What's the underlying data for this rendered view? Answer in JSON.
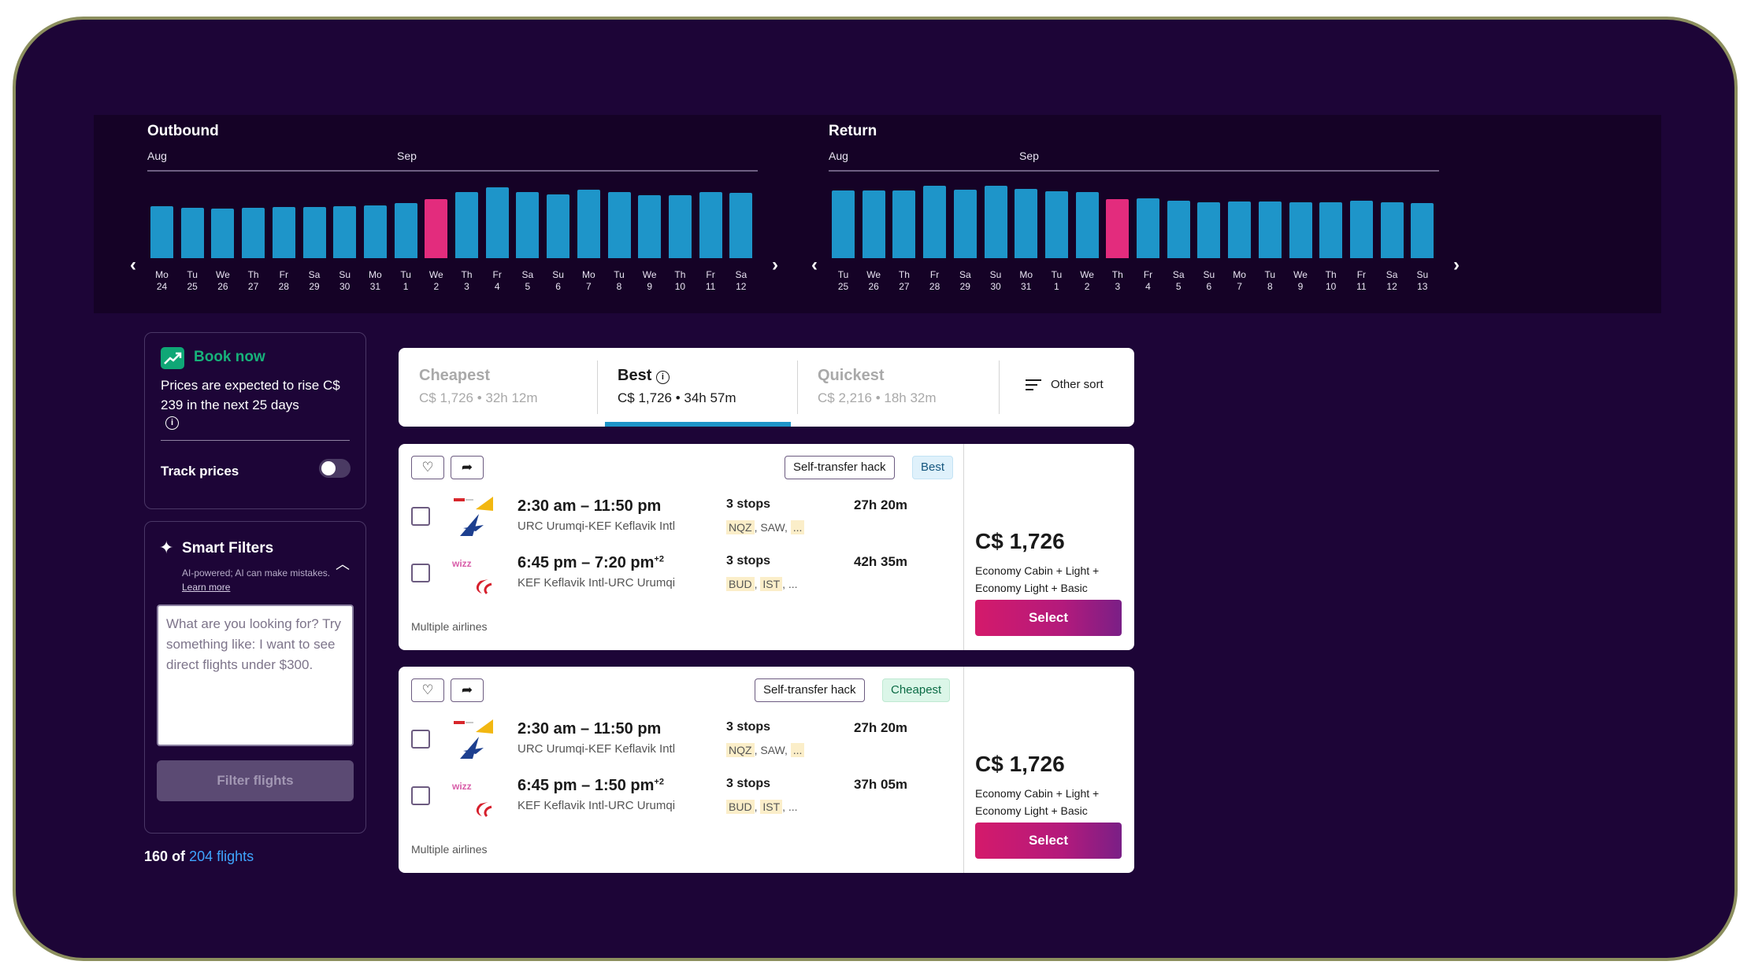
{
  "outbound": {
    "title": "Outbound",
    "months": [
      "Aug",
      "Sep"
    ],
    "selected_index": 9,
    "days": [
      {
        "dow": "Mo",
        "d": "24",
        "level": 0.72
      },
      {
        "dow": "Tu",
        "d": "25",
        "level": 0.7
      },
      {
        "dow": "We",
        "d": "26",
        "level": 0.69
      },
      {
        "dow": "Th",
        "d": "27",
        "level": 0.7
      },
      {
        "dow": "Fr",
        "d": "28",
        "level": 0.71
      },
      {
        "dow": "Sa",
        "d": "29",
        "level": 0.71
      },
      {
        "dow": "Su",
        "d": "30",
        "level": 0.72
      },
      {
        "dow": "Mo",
        "d": "31",
        "level": 0.73
      },
      {
        "dow": "Tu",
        "d": "1",
        "level": 0.76
      },
      {
        "dow": "We",
        "d": "2",
        "level": 0.81
      },
      {
        "dow": "Th",
        "d": "3",
        "level": 0.91
      },
      {
        "dow": "Fr",
        "d": "4",
        "level": 0.98
      },
      {
        "dow": "Sa",
        "d": "5",
        "level": 0.91
      },
      {
        "dow": "Su",
        "d": "6",
        "level": 0.88
      },
      {
        "dow": "Mo",
        "d": "7",
        "level": 0.95
      },
      {
        "dow": "Tu",
        "d": "8",
        "level": 0.91
      },
      {
        "dow": "We",
        "d": "9",
        "level": 0.87
      },
      {
        "dow": "Th",
        "d": "10",
        "level": 0.87
      },
      {
        "dow": "Fr",
        "d": "11",
        "level": 0.91
      },
      {
        "dow": "Sa",
        "d": "12",
        "level": 0.9
      }
    ]
  },
  "return": {
    "title": "Return",
    "months": [
      "Aug",
      "Sep"
    ],
    "selected_index": 9,
    "days": [
      {
        "dow": "Tu",
        "d": "25",
        "level": 0.93
      },
      {
        "dow": "We",
        "d": "26",
        "level": 0.93
      },
      {
        "dow": "Th",
        "d": "27",
        "level": 0.94
      },
      {
        "dow": "Fr",
        "d": "28",
        "level": 1.0
      },
      {
        "dow": "Sa",
        "d": "29",
        "level": 0.95
      },
      {
        "dow": "Su",
        "d": "30",
        "level": 1.0
      },
      {
        "dow": "Mo",
        "d": "31",
        "level": 0.96
      },
      {
        "dow": "Tu",
        "d": "1",
        "level": 0.92
      },
      {
        "dow": "We",
        "d": "2",
        "level": 0.91
      },
      {
        "dow": "Th",
        "d": "3",
        "level": 0.82
      },
      {
        "dow": "Fr",
        "d": "4",
        "level": 0.83
      },
      {
        "dow": "Sa",
        "d": "5",
        "level": 0.79
      },
      {
        "dow": "Su",
        "d": "6",
        "level": 0.77
      },
      {
        "dow": "Mo",
        "d": "7",
        "level": 0.78
      },
      {
        "dow": "Tu",
        "d": "8",
        "level": 0.78
      },
      {
        "dow": "We",
        "d": "9",
        "level": 0.77
      },
      {
        "dow": "Th",
        "d": "10",
        "level": 0.77
      },
      {
        "dow": "Fr",
        "d": "11",
        "level": 0.79
      },
      {
        "dow": "Sa",
        "d": "12",
        "level": 0.77
      },
      {
        "dow": "Su",
        "d": "13",
        "level": 0.76
      }
    ]
  },
  "book_now": {
    "title": "Book now",
    "text": "Prices are expected to rise C$ 239 in the next 25 days",
    "track_label": "Track prices"
  },
  "smart_filters": {
    "title": "Smart Filters",
    "subtitle": "AI-powered; AI can make mistakes.",
    "learn_more": "Learn more",
    "placeholder": "What are you looking for? Try something like: I want to see direct flights under $300.",
    "button": "Filter flights"
  },
  "results": {
    "shown": "160",
    "of": "of",
    "total_link": "204 flights"
  },
  "sort_tabs": [
    {
      "label": "Cheapest",
      "sub": "C$ 1,726 • 32h 12m"
    },
    {
      "label": "Best",
      "sub": "C$ 1,726 • 34h 57m"
    },
    {
      "label": "Quickest",
      "sub": "C$ 2,216 • 18h 32m"
    }
  ],
  "other_sort": "Other sort",
  "flights": [
    {
      "badges": [
        "Self-transfer hack",
        "Best"
      ],
      "legs": [
        {
          "time": "2:30 am – 11:50 pm",
          "plus": "",
          "route": "URC Urumqi-KEF Keflavik Intl",
          "stops": "3 stops",
          "codes": [
            "NQZ",
            "SAW",
            "..."
          ],
          "duration": "27h 20m"
        },
        {
          "time": "6:45 pm – 7:20 pm",
          "plus": "+2",
          "route": "KEF Keflavik Intl-URC Urumqi",
          "stops": "3 stops",
          "codes": [
            "BUD",
            "IST",
            "..."
          ],
          "duration": "42h 35m"
        }
      ],
      "airlines": "Multiple airlines",
      "price": "C$ 1,726",
      "cabin": "Economy Cabin + Light + Economy Light + Basic",
      "select": "Select"
    },
    {
      "badges": [
        "Self-transfer hack",
        "Cheapest"
      ],
      "legs": [
        {
          "time": "2:30 am – 11:50 pm",
          "plus": "",
          "route": "URC Urumqi-KEF Keflavik Intl",
          "stops": "3 stops",
          "codes": [
            "NQZ",
            "SAW",
            "..."
          ],
          "duration": "27h 20m"
        },
        {
          "time": "6:45 pm – 1:50 pm",
          "plus": "+2",
          "route": "KEF Keflavik Intl-URC Urumqi",
          "stops": "3 stops",
          "codes": [
            "BUD",
            "IST",
            "..."
          ],
          "duration": "37h 05m"
        }
      ],
      "airlines": "Multiple airlines",
      "price": "C$ 1,726",
      "cabin": "Economy Cabin + Light + Economy Light + Basic",
      "select": "Select"
    }
  ],
  "colors": {
    "background": "#1d0537",
    "bar": "#1e95c9",
    "bar_selected": "#e32c7d",
    "book_now": "#17b27a",
    "link": "#3fa5ff",
    "select_gradient_start": "#d41a6b",
    "select_gradient_end": "#7a1f86"
  },
  "icons": {
    "prev": "chevron-left-icon",
    "next": "chevron-right-icon",
    "trend": "trending-up-icon",
    "sparkle": "sparkle-icon",
    "favorite": "heart-icon",
    "share": "share-arrow-icon",
    "sort": "sort-lines-icon"
  }
}
